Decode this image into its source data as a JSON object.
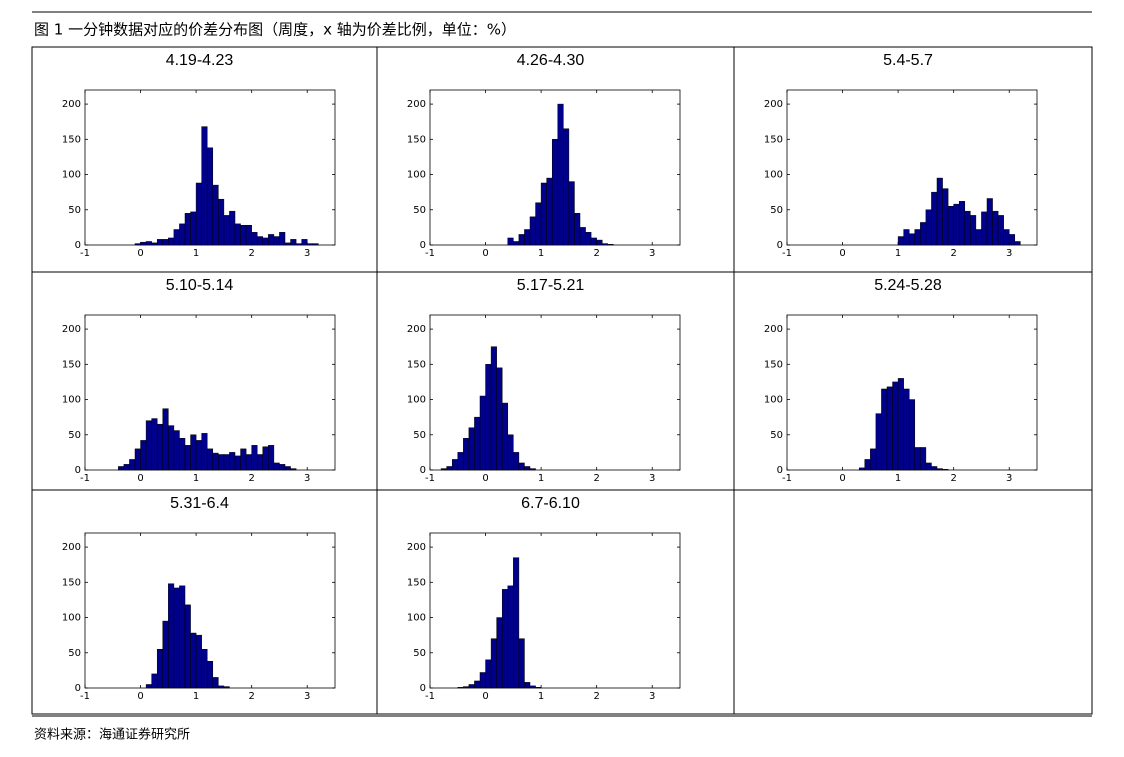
{
  "figure_title": "图 1 一分钟数据对应的价差分布图（周度，x 轴为价差比例，单位：%）",
  "source": "资料来源：海通证券研究所",
  "chart_data": [
    {
      "type": "histogram",
      "title": "4.19-4.23",
      "color": "#00008b",
      "bins": [
        -0.1,
        0,
        0.1,
        0.2,
        0.3,
        0.4,
        0.5,
        0.6,
        0.7,
        0.8,
        0.9,
        1.0,
        1.1,
        1.2,
        1.3,
        1.4,
        1.5,
        1.6,
        1.7,
        1.8,
        1.9,
        2.0,
        2.1,
        2.2,
        2.3,
        2.4,
        2.5,
        2.6,
        2.7,
        2.8,
        2.9,
        3.0,
        3.1,
        3.2
      ],
      "counts": [
        2,
        4,
        5,
        3,
        8,
        8,
        10,
        22,
        30,
        45,
        47,
        88,
        168,
        138,
        85,
        65,
        42,
        48,
        30,
        28,
        28,
        18,
        12,
        10,
        15,
        12,
        18,
        3,
        8,
        2,
        8,
        2,
        2
      ],
      "xlim": [
        -1,
        3.5
      ],
      "ylim": [
        0,
        220
      ],
      "xticks": [
        -1,
        0,
        1,
        2,
        3
      ],
      "yticks": [
        0,
        50,
        100,
        150,
        200
      ]
    },
    {
      "type": "histogram",
      "title": "4.26-4.30",
      "color": "#00008b",
      "bins": [
        0.4,
        0.5,
        0.6,
        0.7,
        0.8,
        0.9,
        1.0,
        1.1,
        1.2,
        1.3,
        1.4,
        1.5,
        1.6,
        1.7,
        1.8,
        1.9,
        2.0,
        2.1,
        2.2,
        2.3
      ],
      "counts": [
        10,
        5,
        15,
        22,
        40,
        60,
        88,
        95,
        150,
        200,
        165,
        90,
        45,
        25,
        18,
        10,
        7,
        2,
        1
      ],
      "xlim": [
        -1,
        3.5
      ],
      "ylim": [
        0,
        220
      ],
      "xticks": [
        -1,
        0,
        1,
        2,
        3
      ],
      "yticks": [
        0,
        50,
        100,
        150,
        200
      ]
    },
    {
      "type": "histogram",
      "title": "5.4-5.7",
      "color": "#00008b",
      "bins": [
        1.0,
        1.1,
        1.2,
        1.3,
        1.4,
        1.5,
        1.6,
        1.7,
        1.8,
        1.9,
        2.0,
        2.1,
        2.2,
        2.3,
        2.4,
        2.5,
        2.6,
        2.7,
        2.8,
        2.9,
        3.0,
        3.1,
        3.2
      ],
      "counts": [
        12,
        22,
        16,
        22,
        32,
        50,
        75,
        95,
        80,
        55,
        58,
        62,
        48,
        42,
        22,
        47,
        66,
        48,
        42,
        22,
        15,
        5
      ],
      "xlim": [
        -1,
        3.5
      ],
      "ylim": [
        0,
        220
      ],
      "xticks": [
        -1,
        0,
        1,
        2,
        3
      ],
      "yticks": [
        0,
        50,
        100,
        150,
        200
      ]
    },
    {
      "type": "histogram",
      "title": "5.10-5.14",
      "color": "#00008b",
      "bins": [
        -0.4,
        -0.3,
        -0.2,
        -0.1,
        0,
        0.1,
        0.2,
        0.3,
        0.4,
        0.5,
        0.6,
        0.7,
        0.8,
        0.9,
        1.0,
        1.1,
        1.2,
        1.3,
        1.4,
        1.5,
        1.6,
        1.7,
        1.8,
        1.9,
        2.0,
        2.1,
        2.2,
        2.3,
        2.4,
        2.5,
        2.6,
        2.7,
        2.8
      ],
      "counts": [
        5,
        8,
        15,
        30,
        42,
        70,
        73,
        65,
        87,
        63,
        56,
        45,
        35,
        50,
        42,
        52,
        30,
        24,
        22,
        22,
        25,
        20,
        30,
        22,
        35,
        22,
        33,
        35,
        10,
        8,
        5,
        2
      ],
      "xlim": [
        -1,
        3.5
      ],
      "ylim": [
        0,
        220
      ],
      "xticks": [
        -1,
        0,
        1,
        2,
        3
      ],
      "yticks": [
        0,
        50,
        100,
        150,
        200
      ]
    },
    {
      "type": "histogram",
      "title": "5.17-5.21",
      "color": "#00008b",
      "bins": [
        -0.8,
        -0.7,
        -0.6,
        -0.5,
        -0.4,
        -0.3,
        -0.2,
        -0.1,
        0,
        0.1,
        0.2,
        0.3,
        0.4,
        0.5,
        0.6,
        0.7,
        0.8,
        0.9
      ],
      "counts": [
        2,
        5,
        15,
        25,
        45,
        60,
        75,
        105,
        150,
        175,
        145,
        95,
        50,
        25,
        10,
        5,
        2
      ],
      "xlim": [
        -1,
        3.5
      ],
      "ylim": [
        0,
        220
      ],
      "xticks": [
        -1,
        0,
        1,
        2,
        3
      ],
      "yticks": [
        0,
        50,
        100,
        150,
        200
      ]
    },
    {
      "type": "histogram",
      "title": "5.24-5.28",
      "color": "#00008b",
      "bins": [
        0.3,
        0.4,
        0.5,
        0.6,
        0.7,
        0.8,
        0.9,
        1.0,
        1.1,
        1.2,
        1.3,
        1.4,
        1.5,
        1.6,
        1.7,
        1.8,
        1.9
      ],
      "counts": [
        3,
        15,
        30,
        80,
        115,
        118,
        125,
        130,
        115,
        100,
        32,
        32,
        10,
        5,
        2,
        1
      ],
      "xlim": [
        -1,
        3.5
      ],
      "ylim": [
        0,
        220
      ],
      "xticks": [
        -1,
        0,
        1,
        2,
        3
      ],
      "yticks": [
        0,
        50,
        100,
        150,
        200
      ]
    },
    {
      "type": "histogram",
      "title": "5.31-6.4",
      "color": "#00008b",
      "bins": [
        0.1,
        0.2,
        0.3,
        0.4,
        0.5,
        0.6,
        0.7,
        0.8,
        0.9,
        1.0,
        1.1,
        1.2,
        1.3,
        1.4,
        1.5,
        1.6
      ],
      "counts": [
        5,
        20,
        55,
        95,
        148,
        142,
        145,
        118,
        78,
        75,
        55,
        38,
        15,
        3,
        2
      ],
      "xlim": [
        -1,
        3.5
      ],
      "ylim": [
        0,
        220
      ],
      "xticks": [
        -1,
        0,
        1,
        2,
        3
      ],
      "yticks": [
        0,
        50,
        100,
        150,
        200
      ]
    },
    {
      "type": "histogram",
      "title": "6.7-6.10",
      "color": "#00008b",
      "bins": [
        -0.5,
        -0.4,
        -0.3,
        -0.2,
        -0.1,
        0,
        0.1,
        0.2,
        0.3,
        0.4,
        0.5,
        0.6,
        0.7,
        0.8,
        0.9,
        1.0
      ],
      "counts": [
        1,
        2,
        5,
        10,
        22,
        40,
        70,
        100,
        140,
        145,
        185,
        70,
        8,
        3,
        1
      ],
      "xlim": [
        -1,
        3.5
      ],
      "ylim": [
        0,
        220
      ],
      "xticks": [
        -1,
        0,
        1,
        2,
        3
      ],
      "yticks": [
        0,
        50,
        100,
        150,
        200
      ]
    }
  ]
}
